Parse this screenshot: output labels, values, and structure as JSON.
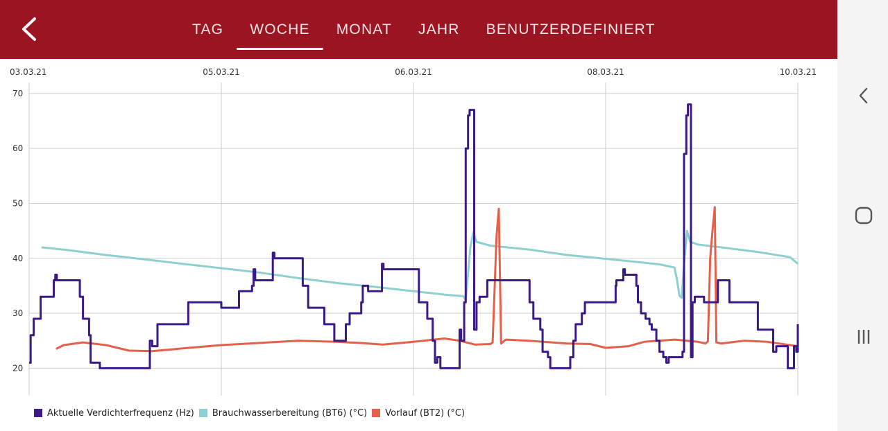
{
  "header": {
    "tabs": [
      {
        "label": "TAG",
        "active": false
      },
      {
        "label": "WOCHE",
        "active": true
      },
      {
        "label": "MONAT",
        "active": false
      },
      {
        "label": "JAHR",
        "active": false
      },
      {
        "label": "BENUTZERDEFINIERT",
        "active": false
      }
    ],
    "back_icon": "chevron-left-icon",
    "bar_color": "#9b1422"
  },
  "chart_data": {
    "type": "line",
    "x_tick_labels": [
      "03.03.21",
      "05.03.21",
      "06.03.21",
      "08.03.21",
      "10.03.21"
    ],
    "y_ticks": [
      20,
      30,
      40,
      50,
      60,
      70
    ],
    "ylim": [
      15,
      72
    ],
    "grid": true,
    "legend_position": "bottom-left",
    "series": [
      {
        "name": "Aktuelle Verdichterfrequenz (Hz)",
        "color": "#3b1a87",
        "step": true,
        "points": [
          [
            0.0,
            21
          ],
          [
            0.002,
            26
          ],
          [
            0.006,
            29
          ],
          [
            0.015,
            33
          ],
          [
            0.032,
            36
          ],
          [
            0.034,
            37
          ],
          [
            0.036,
            36
          ],
          [
            0.066,
            33
          ],
          [
            0.07,
            29
          ],
          [
            0.078,
            26
          ],
          [
            0.08,
            21
          ],
          [
            0.092,
            20
          ],
          [
            0.155,
            20
          ],
          [
            0.157,
            25
          ],
          [
            0.16,
            24
          ],
          [
            0.167,
            28
          ],
          [
            0.206,
            28
          ],
          [
            0.207,
            32
          ],
          [
            0.25,
            31
          ],
          [
            0.272,
            31
          ],
          [
            0.273,
            34
          ],
          [
            0.29,
            35
          ],
          [
            0.292,
            38
          ],
          [
            0.294,
            36
          ],
          [
            0.315,
            36
          ],
          [
            0.317,
            41
          ],
          [
            0.319,
            40
          ],
          [
            0.354,
            40
          ],
          [
            0.356,
            35
          ],
          [
            0.363,
            31
          ],
          [
            0.384,
            28
          ],
          [
            0.397,
            25
          ],
          [
            0.412,
            28
          ],
          [
            0.417,
            30
          ],
          [
            0.432,
            32
          ],
          [
            0.434,
            35
          ],
          [
            0.441,
            34
          ],
          [
            0.457,
            34
          ],
          [
            0.459,
            39
          ],
          [
            0.461,
            38
          ],
          [
            0.503,
            38
          ],
          [
            0.507,
            32
          ],
          [
            0.518,
            29
          ],
          [
            0.525,
            25
          ],
          [
            0.528,
            21
          ],
          [
            0.531,
            22
          ],
          [
            0.535,
            20
          ],
          [
            0.558,
            20
          ],
          [
            0.56,
            27
          ],
          [
            0.562,
            25
          ],
          [
            0.566,
            32
          ],
          [
            0.568,
            60
          ],
          [
            0.571,
            66
          ],
          [
            0.573,
            67
          ],
          [
            0.577,
            67
          ],
          [
            0.579,
            27
          ],
          [
            0.582,
            32
          ],
          [
            0.586,
            33
          ],
          [
            0.596,
            36
          ],
          [
            0.647,
            36
          ],
          [
            0.651,
            32
          ],
          [
            0.656,
            29
          ],
          [
            0.665,
            27
          ],
          [
            0.668,
            23
          ],
          [
            0.675,
            22
          ],
          [
            0.678,
            20
          ],
          [
            0.702,
            20
          ],
          [
            0.704,
            22
          ],
          [
            0.708,
            25
          ],
          [
            0.711,
            28
          ],
          [
            0.719,
            30
          ],
          [
            0.723,
            32
          ],
          [
            0.761,
            32
          ],
          [
            0.763,
            35
          ],
          [
            0.764,
            36
          ],
          [
            0.773,
            38
          ],
          [
            0.775,
            37
          ],
          [
            0.787,
            37
          ],
          [
            0.79,
            35
          ],
          [
            0.792,
            32
          ],
          [
            0.796,
            30
          ],
          [
            0.802,
            29
          ],
          [
            0.807,
            28
          ],
          [
            0.81,
            27
          ],
          [
            0.816,
            25
          ],
          [
            0.82,
            23
          ],
          [
            0.825,
            22
          ],
          [
            0.829,
            21
          ],
          [
            0.832,
            22
          ],
          [
            0.848,
            22
          ],
          [
            0.85,
            23
          ],
          [
            0.852,
            59
          ],
          [
            0.855,
            66
          ],
          [
            0.857,
            68
          ],
          [
            0.859,
            68
          ],
          [
            0.861,
            22
          ],
          [
            0.863,
            32
          ],
          [
            0.866,
            33
          ],
          [
            0.876,
            33
          ],
          [
            0.878,
            32
          ],
          [
            0.894,
            32
          ],
          [
            0.896,
            36
          ],
          [
            0.909,
            36
          ],
          [
            0.911,
            32
          ],
          [
            0.946,
            32
          ],
          [
            0.948,
            27
          ],
          [
            0.966,
            27
          ],
          [
            0.968,
            23
          ],
          [
            0.972,
            24
          ],
          [
            0.985,
            24
          ],
          [
            0.987,
            20
          ],
          [
            0.994,
            20
          ],
          [
            0.995,
            24
          ],
          [
            0.998,
            23
          ],
          [
            1.0,
            28
          ]
        ]
      },
      {
        "name": "Brauchwasserbereitung (BT6) (°C)",
        "color": "#8ecfcf",
        "step": false,
        "points": [
          [
            0.016,
            42
          ],
          [
            0.05,
            41.5
          ],
          [
            0.1,
            40.6
          ],
          [
            0.15,
            39.8
          ],
          [
            0.2,
            39
          ],
          [
            0.25,
            38.2
          ],
          [
            0.3,
            37.4
          ],
          [
            0.35,
            36.4
          ],
          [
            0.4,
            35.5
          ],
          [
            0.45,
            34.8
          ],
          [
            0.5,
            34
          ],
          [
            0.54,
            33.4
          ],
          [
            0.565,
            33.1
          ],
          [
            0.568,
            32.3
          ],
          [
            0.574,
            42
          ],
          [
            0.578,
            44.8
          ],
          [
            0.582,
            43
          ],
          [
            0.6,
            42.3
          ],
          [
            0.65,
            41.6
          ],
          [
            0.7,
            40.6
          ],
          [
            0.75,
            39.9
          ],
          [
            0.8,
            39.2
          ],
          [
            0.82,
            38.9
          ],
          [
            0.84,
            38.3
          ],
          [
            0.84,
            38
          ],
          [
            0.843,
            36
          ],
          [
            0.846,
            33.2
          ],
          [
            0.849,
            32.8
          ],
          [
            0.852,
            39
          ],
          [
            0.856,
            45
          ],
          [
            0.86,
            43
          ],
          [
            0.87,
            42.5
          ],
          [
            0.9,
            42.0
          ],
          [
            0.95,
            41.1
          ],
          [
            0.99,
            40.2
          ],
          [
            1.0,
            39
          ]
        ]
      },
      {
        "name": "Vorlauf (BT2) (°C)",
        "color": "#e4604a",
        "step": false,
        "points": [
          [
            0.035,
            23.5
          ],
          [
            0.045,
            24.2
          ],
          [
            0.07,
            24.7
          ],
          [
            0.1,
            24.2
          ],
          [
            0.13,
            23.2
          ],
          [
            0.16,
            23.1
          ],
          [
            0.2,
            23.6
          ],
          [
            0.25,
            24.2
          ],
          [
            0.3,
            24.6
          ],
          [
            0.35,
            25.0
          ],
          [
            0.4,
            24.8
          ],
          [
            0.43,
            24.6
          ],
          [
            0.46,
            24.3
          ],
          [
            0.5,
            24.8
          ],
          [
            0.54,
            25.4
          ],
          [
            0.56,
            25
          ],
          [
            0.58,
            24.3
          ],
          [
            0.6,
            24.4
          ],
          [
            0.603,
            24.7
          ],
          [
            0.606,
            36
          ],
          [
            0.608,
            44
          ],
          [
            0.611,
            49
          ],
          [
            0.613,
            33
          ],
          [
            0.614,
            24.5
          ],
          [
            0.62,
            25.2
          ],
          [
            0.65,
            25
          ],
          [
            0.7,
            24.5
          ],
          [
            0.73,
            24.4
          ],
          [
            0.75,
            23.7
          ],
          [
            0.78,
            24
          ],
          [
            0.8,
            24.8
          ],
          [
            0.84,
            25.2
          ],
          [
            0.87,
            24.8
          ],
          [
            0.88,
            24.5
          ],
          [
            0.883,
            24.9
          ],
          [
            0.886,
            40
          ],
          [
            0.889,
            45
          ],
          [
            0.892,
            49.3
          ],
          [
            0.894,
            24.7
          ],
          [
            0.9,
            24.5
          ],
          [
            0.93,
            25
          ],
          [
            0.96,
            24.8
          ],
          [
            1.0,
            24
          ]
        ]
      }
    ]
  },
  "navbar": {
    "back_icon": "nav-back-icon",
    "home_icon": "nav-home-icon",
    "recents_icon": "nav-recents-icon"
  }
}
